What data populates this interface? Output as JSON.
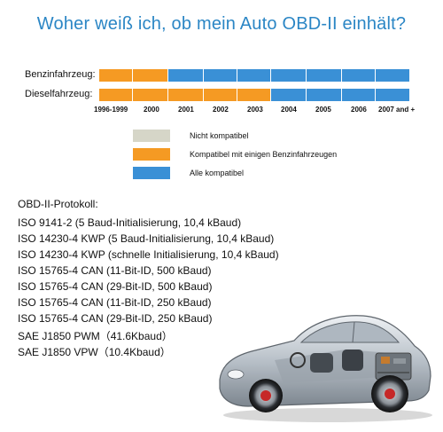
{
  "title": "Woher weiß ich, ob mein Auto OBD-II einhält?",
  "rows": [
    {
      "label": "Benzinfahrzeug:",
      "segments": [
        "orange",
        "orange",
        "blue",
        "blue",
        "blue",
        "blue",
        "blue",
        "blue",
        "blue"
      ]
    },
    {
      "label": "Dieselfahrzeug:",
      "segments": [
        "orange",
        "orange",
        "orange",
        "orange",
        "orange",
        "blue",
        "blue",
        "blue",
        "blue"
      ]
    }
  ],
  "years": [
    "1996-1999",
    "2000",
    "2001",
    "2002",
    "2003",
    "2004",
    "2005",
    "2006",
    "2007 and +"
  ],
  "legend": [
    {
      "color": "#d6d6c8",
      "label": "Nicht kompatibel"
    },
    {
      "color": "#f59a23",
      "label": "Kompatibel mit einigen Benzinfahrzeugen"
    },
    {
      "color": "#3a90d6",
      "label": "Alle kompatibel"
    }
  ],
  "protocols_heading": "OBD-II-Protokoll:",
  "protocols": [
    "ISO 9141-2 (5 Baud-Initialisierung, 10,4 kBaud)",
    "ISO 14230-4 KWP (5 Baud-Initialisierung, 10,4 kBaud)",
    "ISO 14230-4 KWP (schnelle Initialisierung, 10,4 kBaud)",
    "ISO 15765-4 CAN (11-Bit-ID, 500 kBaud)",
    "ISO 15765-4 CAN (29-Bit-ID, 500 kBaud)",
    "ISO 15765-4 CAN (11-Bit-ID, 250 kBaud)",
    "ISO 15765-4 CAN (29-Bit-ID, 250 kBaud)",
    "SAE J1850 PWM（41.6Kbaud）",
    "SAE J1850 VPW（10.4Kbaud）"
  ],
  "colors": {
    "orange": "#f59a23",
    "blue": "#3a90d6",
    "title": "#2b86c5"
  }
}
